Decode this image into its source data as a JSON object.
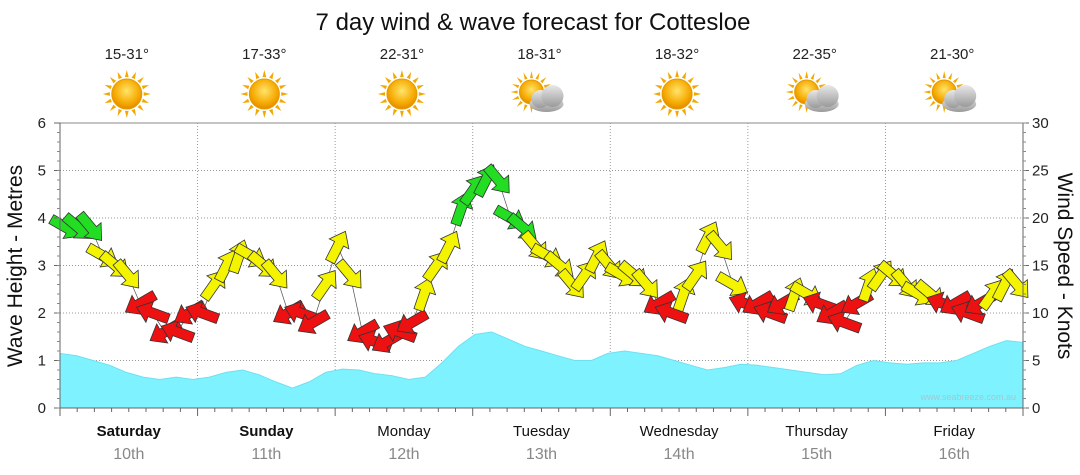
{
  "chart_data": {
    "type": "line",
    "title": "7 day wind & wave forecast for Cottesloe",
    "left_axis": {
      "label": "Wave Height - Metres",
      "min": 0,
      "max": 6,
      "ticks": [
        "0",
        "1",
        "2",
        "3",
        "4",
        "5",
        "6"
      ]
    },
    "right_axis": {
      "label": "Wind Speed - Knots",
      "min": 0,
      "max": 30,
      "ticks": [
        "0",
        "5",
        "10",
        "15",
        "20",
        "25",
        "30"
      ]
    },
    "grid": true,
    "credit": "www.seabreeze.com.au",
    "days": [
      {
        "name": "Saturday",
        "date": "10th",
        "bold": true,
        "temp": "15-31°",
        "icon": "sun-icon"
      },
      {
        "name": "Sunday",
        "date": "11th",
        "bold": true,
        "temp": "17-33°",
        "icon": "sun-icon"
      },
      {
        "name": "Monday",
        "date": "12th",
        "bold": false,
        "temp": "22-31°",
        "icon": "sun-icon"
      },
      {
        "name": "Tuesday",
        "date": "13th",
        "bold": false,
        "temp": "18-31°",
        "icon": "sun-cloud-icon"
      },
      {
        "name": "Wednesday",
        "date": "14th",
        "bold": false,
        "temp": "18-32°",
        "icon": "sun-icon"
      },
      {
        "name": "Thursday",
        "date": "15th",
        "bold": false,
        "temp": "22-35°",
        "icon": "sun-cloud-icon"
      },
      {
        "name": "Friday",
        "date": "16th",
        "bold": false,
        "temp": "21-30°",
        "icon": "sun-cloud-icon"
      }
    ],
    "wave_height_m": [
      1.15,
      1.1,
      1.0,
      0.9,
      0.75,
      0.65,
      0.6,
      0.65,
      0.6,
      0.65,
      0.75,
      0.8,
      0.7,
      0.55,
      0.42,
      0.55,
      0.75,
      0.82,
      0.8,
      0.72,
      0.68,
      0.6,
      0.65,
      0.95,
      1.3,
      1.55,
      1.6,
      1.45,
      1.3,
      1.2,
      1.1,
      1.0,
      1.0,
      1.15,
      1.2,
      1.15,
      1.1,
      1.0,
      0.9,
      0.8,
      0.85,
      0.92,
      0.9,
      0.85,
      0.8,
      0.75,
      0.7,
      0.72,
      0.9,
      1.0,
      0.95,
      0.92,
      0.95,
      0.95,
      1.0,
      1.15,
      1.3,
      1.42,
      1.38
    ],
    "wind_speed_kn": [
      19,
      19,
      19,
      16,
      15,
      14,
      11,
      10,
      8,
      8,
      10,
      10,
      13,
      15,
      16,
      16,
      15,
      14,
      10,
      10,
      9,
      13,
      17,
      14,
      8,
      7,
      7,
      8,
      9,
      12,
      15,
      17,
      21,
      23,
      24,
      24,
      20,
      19,
      17,
      16,
      15,
      13,
      14,
      16,
      15,
      14,
      14,
      13,
      11,
      10,
      12,
      14,
      18,
      17,
      13,
      11,
      11,
      10,
      11,
      12,
      12,
      11,
      10,
      9,
      11,
      13,
      14,
      14,
      13,
      12,
      12,
      11,
      11,
      10,
      11,
      12,
      13,
      13
    ],
    "wind_colors": {
      "strong": "#22dd22",
      "moderate": "#f4f400",
      "light": "#ee1111"
    },
    "wave_color": "#7ff2ff"
  }
}
